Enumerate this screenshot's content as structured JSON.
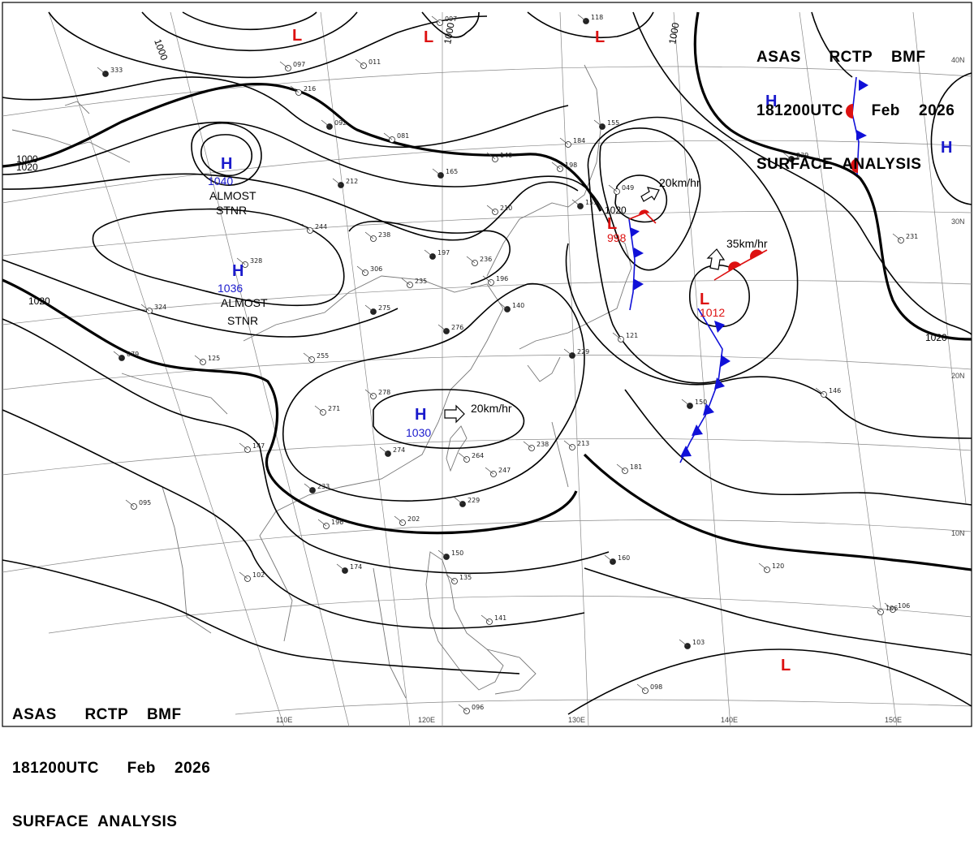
{
  "header": {
    "line1": "ASAS      RCTP    BMF",
    "line2": "181200UTC      Feb    2026",
    "line3": "SURFACE  ANALYSIS"
  },
  "footer": {
    "line1": "ASAS      RCTP    BMF",
    "line2": "181200UTC      Feb    2026",
    "line3": "SURFACE  ANALYSIS"
  },
  "colors": {
    "high": "#1a1acc",
    "low": "#dd1111",
    "cold_front": "#1010d8",
    "warm_front": "#dd1111",
    "isobar": "#000000",
    "grid": "#888888",
    "coast": "#777777"
  },
  "grid_labels": {
    "lon": [
      "110E",
      "120E",
      "130E",
      "140E",
      "150E"
    ],
    "lat": [
      "40N",
      "30N",
      "20N",
      "10N"
    ]
  },
  "isobar_labels": [
    "1000",
    "1000",
    "1020",
    "1020",
    "1020",
    "1020",
    "1000",
    "1000"
  ],
  "pressure_centers": [
    {
      "type": "H",
      "value": "1040",
      "note": "ALMOST STNR"
    },
    {
      "type": "H",
      "value": "1036",
      "note": "ALMOST STNR"
    },
    {
      "type": "H",
      "value": "1030",
      "motion": "20km/hr"
    },
    {
      "type": "H",
      "value": ""
    },
    {
      "type": "H",
      "value": ""
    },
    {
      "type": "L",
      "value": "998",
      "motion": "20km/hr"
    },
    {
      "type": "L",
      "value": "1012",
      "motion": "35km/hr"
    },
    {
      "type": "L",
      "value": ""
    },
    {
      "type": "L",
      "value": ""
    },
    {
      "type": "L",
      "value": ""
    },
    {
      "type": "L",
      "value": ""
    }
  ],
  "station_labels": [
    "333",
    "011",
    "216",
    "092",
    "081",
    "140",
    "165",
    "184",
    "198",
    "212",
    "244",
    "238",
    "197",
    "236",
    "210",
    "153",
    "049",
    "306",
    "275",
    "235",
    "196",
    "140",
    "328",
    "324",
    "079",
    "125",
    "255",
    "276",
    "278",
    "271",
    "274",
    "264",
    "238",
    "229",
    "247",
    "213",
    "229",
    "181",
    "121",
    "150",
    "146",
    "231",
    "239",
    "106",
    "147",
    "233",
    "196",
    "202",
    "174",
    "102",
    "095",
    "150",
    "135",
    "141",
    "160",
    "120",
    "106",
    "103",
    "098",
    "096",
    "118",
    "097",
    "097",
    "155"
  ]
}
